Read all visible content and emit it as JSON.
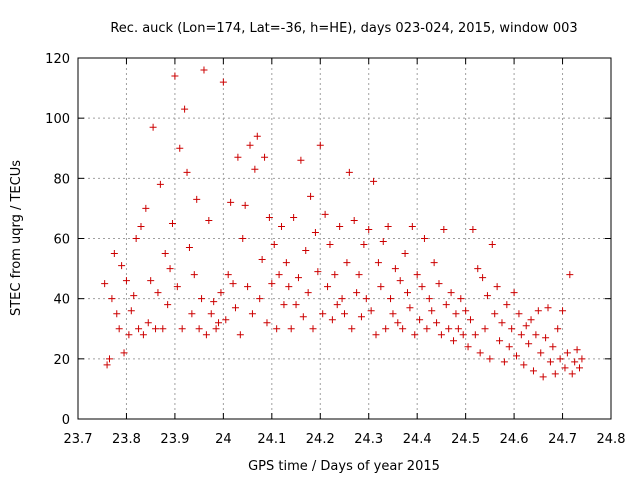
{
  "chart_data": {
    "type": "scatter",
    "title": "Rec. auck (Lon=174, Lat=-36, h=HE), days 023-024, 2015, window 003",
    "xlabel": "GPS time / Days of year 2015",
    "ylabel": "STEC from uqrg / TECUs",
    "xlim": [
      23.7,
      24.8
    ],
    "ylim": [
      0,
      120
    ],
    "x_ticks": [
      "23.7",
      "23.8",
      "23.9",
      "24",
      "24.1",
      "24.2",
      "24.3",
      "24.4",
      "24.5",
      "24.6",
      "24.7",
      "24.8"
    ],
    "y_ticks": [
      "0",
      "20",
      "40",
      "60",
      "80",
      "100",
      "120"
    ],
    "grid": true,
    "legend": "none",
    "marker": "plus",
    "color": "#cc0000",
    "series": [
      {
        "points": [
          [
            23.755,
            45
          ],
          [
            23.76,
            18
          ],
          [
            23.765,
            20
          ],
          [
            23.77,
            40
          ],
          [
            23.775,
            55
          ],
          [
            23.78,
            35
          ],
          [
            23.785,
            30
          ],
          [
            23.79,
            51
          ],
          [
            23.795,
            22
          ],
          [
            23.8,
            46
          ],
          [
            23.805,
            28
          ],
          [
            23.81,
            36
          ],
          [
            23.815,
            41
          ],
          [
            23.82,
            60
          ],
          [
            23.825,
            30
          ],
          [
            23.83,
            64
          ],
          [
            23.835,
            28
          ],
          [
            23.84,
            70
          ],
          [
            23.845,
            32
          ],
          [
            23.85,
            46
          ],
          [
            23.855,
            97
          ],
          [
            23.86,
            30
          ],
          [
            23.865,
            42
          ],
          [
            23.87,
            78
          ],
          [
            23.875,
            30
          ],
          [
            23.88,
            55
          ],
          [
            23.885,
            38
          ],
          [
            23.89,
            50
          ],
          [
            23.895,
            65
          ],
          [
            23.9,
            114
          ],
          [
            23.905,
            44
          ],
          [
            23.91,
            90
          ],
          [
            23.915,
            30
          ],
          [
            23.92,
            103
          ],
          [
            23.925,
            82
          ],
          [
            23.93,
            57
          ],
          [
            23.935,
            35
          ],
          [
            23.94,
            48
          ],
          [
            23.945,
            73
          ],
          [
            23.95,
            30
          ],
          [
            23.955,
            40
          ],
          [
            23.96,
            116
          ],
          [
            23.965,
            28
          ],
          [
            23.97,
            66
          ],
          [
            23.975,
            35
          ],
          [
            23.98,
            39
          ],
          [
            23.985,
            30
          ],
          [
            23.99,
            32
          ],
          [
            23.995,
            42
          ],
          [
            24.0,
            112
          ],
          [
            24.005,
            33
          ],
          [
            24.01,
            48
          ],
          [
            24.015,
            72
          ],
          [
            24.02,
            45
          ],
          [
            24.025,
            37
          ],
          [
            24.03,
            87
          ],
          [
            24.035,
            28
          ],
          [
            24.04,
            60
          ],
          [
            24.045,
            71
          ],
          [
            24.05,
            44
          ],
          [
            24.055,
            91
          ],
          [
            24.06,
            35
          ],
          [
            24.065,
            83
          ],
          [
            24.07,
            94
          ],
          [
            24.075,
            40
          ],
          [
            24.08,
            53
          ],
          [
            24.085,
            87
          ],
          [
            24.09,
            32
          ],
          [
            24.095,
            67
          ],
          [
            24.1,
            45
          ],
          [
            24.105,
            58
          ],
          [
            24.11,
            30
          ],
          [
            24.115,
            48
          ],
          [
            24.12,
            64
          ],
          [
            24.125,
            38
          ],
          [
            24.13,
            52
          ],
          [
            24.135,
            44
          ],
          [
            24.14,
            30
          ],
          [
            24.145,
            67
          ],
          [
            24.15,
            38
          ],
          [
            24.155,
            47
          ],
          [
            24.16,
            86
          ],
          [
            24.165,
            34
          ],
          [
            24.17,
            56
          ],
          [
            24.175,
            42
          ],
          [
            24.18,
            74
          ],
          [
            24.185,
            30
          ],
          [
            24.19,
            62
          ],
          [
            24.195,
            49
          ],
          [
            24.2,
            91
          ],
          [
            24.205,
            35
          ],
          [
            24.21,
            68
          ],
          [
            24.215,
            44
          ],
          [
            24.22,
            58
          ],
          [
            24.225,
            33
          ],
          [
            24.23,
            48
          ],
          [
            24.235,
            38
          ],
          [
            24.24,
            64
          ],
          [
            24.245,
            40
          ],
          [
            24.25,
            35
          ],
          [
            24.255,
            52
          ],
          [
            24.26,
            82
          ],
          [
            24.265,
            30
          ],
          [
            24.27,
            66
          ],
          [
            24.275,
            42
          ],
          [
            24.28,
            48
          ],
          [
            24.285,
            34
          ],
          [
            24.29,
            58
          ],
          [
            24.295,
            40
          ],
          [
            24.3,
            63
          ],
          [
            24.305,
            36
          ],
          [
            24.31,
            79
          ],
          [
            24.315,
            28
          ],
          [
            24.32,
            52
          ],
          [
            24.325,
            44
          ],
          [
            24.33,
            59
          ],
          [
            24.335,
            30
          ],
          [
            24.34,
            64
          ],
          [
            24.345,
            40
          ],
          [
            24.35,
            35
          ],
          [
            24.355,
            50
          ],
          [
            24.36,
            32
          ],
          [
            24.365,
            46
          ],
          [
            24.37,
            30
          ],
          [
            24.375,
            55
          ],
          [
            24.38,
            42
          ],
          [
            24.385,
            37
          ],
          [
            24.39,
            64
          ],
          [
            24.395,
            28
          ],
          [
            24.4,
            48
          ],
          [
            24.405,
            33
          ],
          [
            24.41,
            44
          ],
          [
            24.415,
            60
          ],
          [
            24.42,
            30
          ],
          [
            24.425,
            40
          ],
          [
            24.43,
            36
          ],
          [
            24.435,
            52
          ],
          [
            24.44,
            32
          ],
          [
            24.445,
            45
          ],
          [
            24.45,
            28
          ],
          [
            24.455,
            63
          ],
          [
            24.46,
            38
          ],
          [
            24.465,
            30
          ],
          [
            24.47,
            42
          ],
          [
            24.475,
            26
          ],
          [
            24.48,
            35
          ],
          [
            24.485,
            30
          ],
          [
            24.49,
            40
          ],
          [
            24.495,
            28
          ],
          [
            24.5,
            36
          ],
          [
            24.505,
            24
          ],
          [
            24.51,
            33
          ],
          [
            24.515,
            63
          ],
          [
            24.52,
            28
          ],
          [
            24.525,
            50
          ],
          [
            24.53,
            22
          ],
          [
            24.535,
            47
          ],
          [
            24.54,
            30
          ],
          [
            24.545,
            41
          ],
          [
            24.55,
            20
          ],
          [
            24.555,
            58
          ],
          [
            24.56,
            35
          ],
          [
            24.565,
            44
          ],
          [
            24.57,
            26
          ],
          [
            24.575,
            32
          ],
          [
            24.58,
            19
          ],
          [
            24.585,
            38
          ],
          [
            24.59,
            24
          ],
          [
            24.595,
            30
          ],
          [
            24.6,
            42
          ],
          [
            24.605,
            21
          ],
          [
            24.61,
            35
          ],
          [
            24.615,
            28
          ],
          [
            24.62,
            18
          ],
          [
            24.625,
            31
          ],
          [
            24.63,
            25
          ],
          [
            24.635,
            33
          ],
          [
            24.64,
            16
          ],
          [
            24.645,
            28
          ],
          [
            24.65,
            36
          ],
          [
            24.655,
            22
          ],
          [
            24.66,
            14
          ],
          [
            24.665,
            27
          ],
          [
            24.67,
            37
          ],
          [
            24.675,
            19
          ],
          [
            24.68,
            24
          ],
          [
            24.685,
            15
          ],
          [
            24.69,
            30
          ],
          [
            24.695,
            20
          ],
          [
            24.7,
            36
          ],
          [
            24.705,
            17
          ],
          [
            24.71,
            22
          ],
          [
            24.715,
            48
          ],
          [
            24.72,
            15
          ],
          [
            24.725,
            19
          ],
          [
            24.73,
            23
          ],
          [
            24.735,
            17
          ],
          [
            24.74,
            20
          ]
        ]
      }
    ]
  }
}
